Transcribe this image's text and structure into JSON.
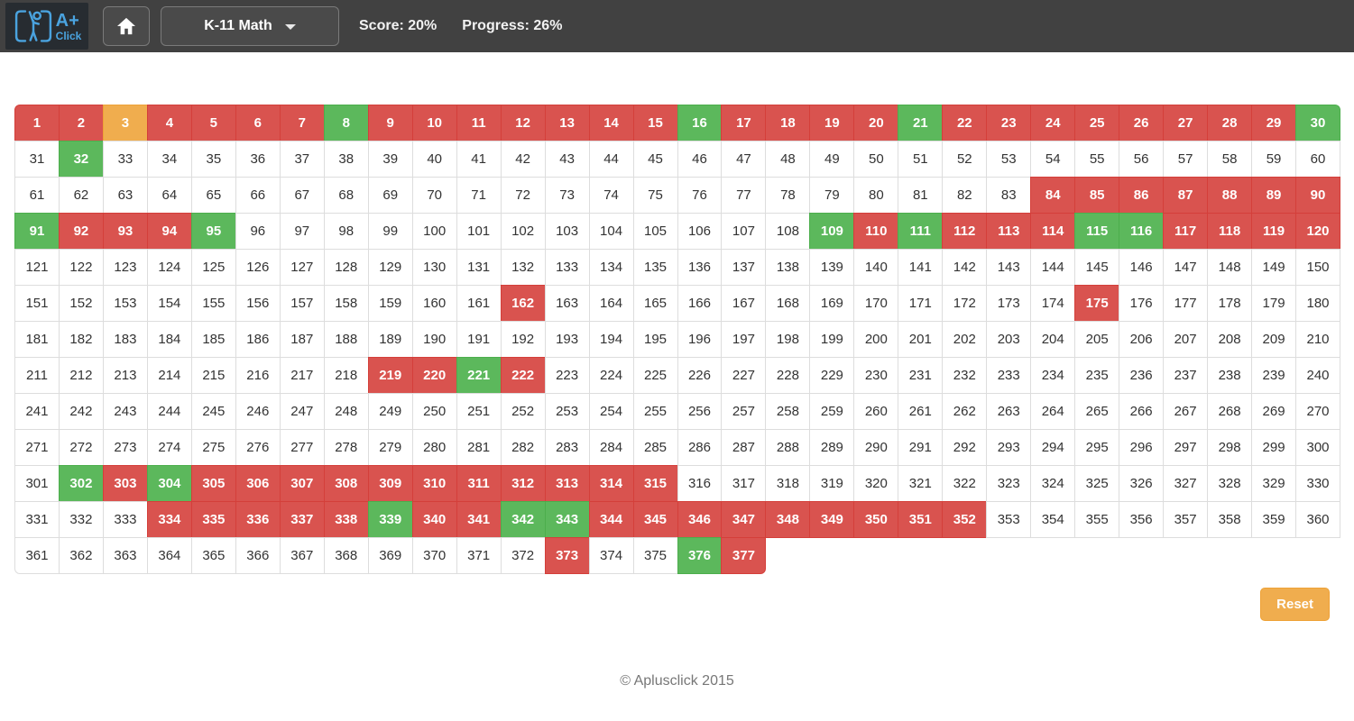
{
  "header": {
    "logo_line1": "A+",
    "logo_line2": "Click",
    "dropdown_label": "K-11 Math",
    "score_label": "Score: 20%",
    "progress_label": "Progress: 26%"
  },
  "colors": {
    "wrong_red": "#d9534f",
    "correct_green": "#5cb85c",
    "partial_orange": "#f0ad4e",
    "header_bg": "#414141",
    "logo_blue": "#4aa3df"
  },
  "grid": {
    "columns": 30,
    "total_cells": 377,
    "first_number": 1,
    "last_number": 377,
    "red_cells": [
      1,
      2,
      4,
      5,
      6,
      7,
      9,
      10,
      11,
      12,
      13,
      14,
      15,
      17,
      18,
      19,
      20,
      22,
      23,
      24,
      25,
      26,
      27,
      28,
      29,
      84,
      85,
      86,
      87,
      88,
      89,
      90,
      92,
      93,
      94,
      110,
      112,
      113,
      114,
      117,
      118,
      119,
      120,
      162,
      175,
      219,
      220,
      222,
      303,
      305,
      306,
      307,
      308,
      309,
      310,
      311,
      312,
      313,
      314,
      315,
      334,
      335,
      336,
      337,
      338,
      340,
      341,
      344,
      345,
      346,
      347,
      348,
      349,
      350,
      351,
      352,
      373,
      377
    ],
    "green_cells": [
      8,
      16,
      21,
      30,
      32,
      91,
      95,
      109,
      111,
      115,
      116,
      221,
      302,
      304,
      339,
      342,
      343,
      376
    ],
    "orange_cells": [
      3
    ]
  },
  "reset": {
    "label": "Reset"
  },
  "footer": {
    "copyright": "© Aplusclick 2015"
  }
}
